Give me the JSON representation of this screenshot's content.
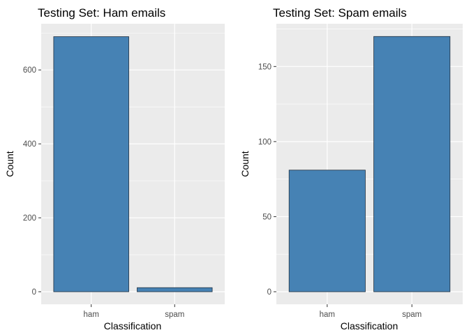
{
  "chart_data": [
    {
      "type": "bar",
      "title": "Testing Set: Ham emails",
      "xlabel": "Classification",
      "ylabel": "Count",
      "categories": [
        "ham",
        "spam"
      ],
      "values": [
        690,
        11
      ],
      "ylim": [
        0,
        725
      ],
      "yticks": [
        0,
        200,
        400,
        600
      ],
      "grid": true,
      "bar_color": "#4682B4",
      "panel_color": "#EBEBEB"
    },
    {
      "type": "bar",
      "title": "Testing Set: Spam emails",
      "xlabel": "Classification",
      "ylabel": "Count",
      "categories": [
        "ham",
        "spam"
      ],
      "values": [
        81,
        170
      ],
      "ylim": [
        0,
        178.5
      ],
      "yticks": [
        0,
        50,
        100,
        150
      ],
      "grid": true,
      "bar_color": "#4682B4",
      "panel_color": "#EBEBEB"
    }
  ]
}
